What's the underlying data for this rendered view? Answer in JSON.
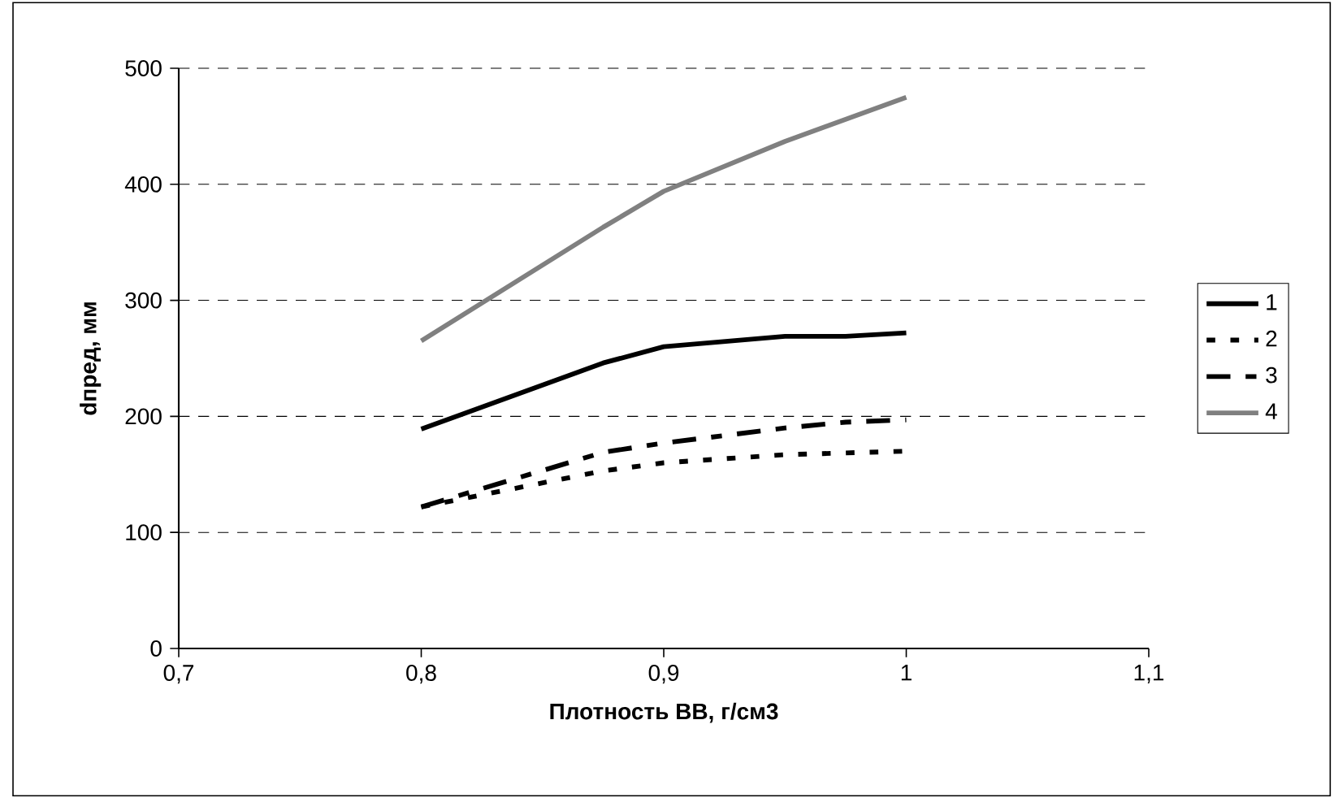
{
  "chart_data": {
    "type": "line",
    "xlabel": "Плотность ВВ, г/см3",
    "ylabel": "dпред, мм",
    "xlim": [
      0.7,
      1.1
    ],
    "ylim": [
      0,
      500
    ],
    "xticks": [
      {
        "value": 0.7,
        "label": "0,7"
      },
      {
        "value": 0.8,
        "label": "0,8"
      },
      {
        "value": 0.9,
        "label": "0,9"
      },
      {
        "value": 1,
        "label": "1"
      },
      {
        "value": 1.1,
        "label": "1,1"
      }
    ],
    "yticks": [
      0,
      100,
      200,
      300,
      400,
      500
    ],
    "grid": "y",
    "legend": "right",
    "series": [
      {
        "name": "1",
        "color": "#000000",
        "line_style": "solid",
        "x": [
          0.8,
          0.875,
          0.9,
          0.95,
          0.975,
          1.0
        ],
        "values": [
          189,
          246,
          260,
          269,
          269,
          272
        ]
      },
      {
        "name": "2",
        "color": "#000000",
        "line_style": "dotted",
        "x": [
          0.8,
          0.875,
          0.9,
          0.95,
          1.0
        ],
        "values": [
          122,
          153,
          160,
          167,
          170
        ]
      },
      {
        "name": "3",
        "color": "#000000",
        "line_style": "dashed",
        "x": [
          0.8,
          0.875,
          0.9,
          0.95,
          0.975,
          1.0
        ],
        "values": [
          122,
          169,
          177,
          190,
          195,
          197
        ]
      },
      {
        "name": "4",
        "color": "#808080",
        "line_style": "solid",
        "x": [
          0.8,
          0.875,
          0.9,
          0.95,
          1.0
        ],
        "values": [
          265,
          363,
          394,
          437,
          475
        ]
      }
    ]
  }
}
